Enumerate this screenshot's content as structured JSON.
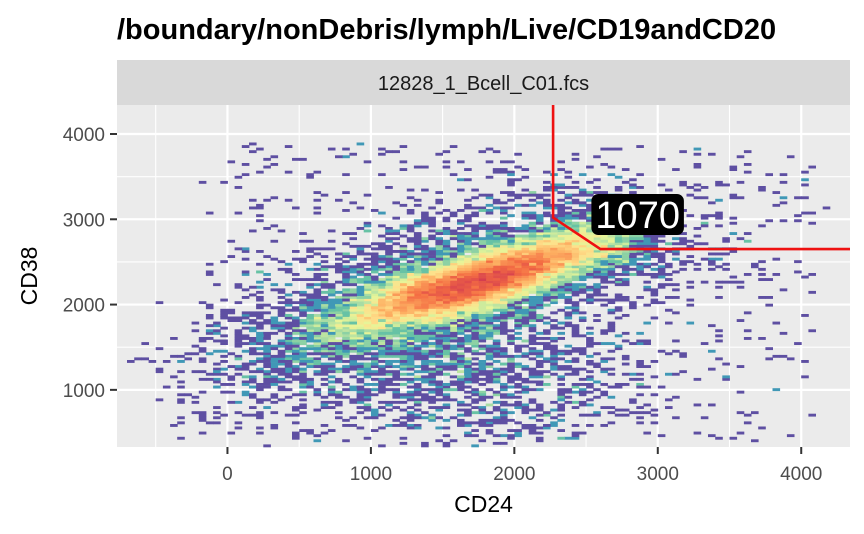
{
  "chart_data": {
    "type": "scatter",
    "subtype": "2d-density (binned flow cytometry dot plot)",
    "title": "/boundary/nonDebris/lymph/Live/CD19andCD20",
    "panel_strip": "12828_1_Bcell_C01.fcs",
    "xlabel": "CD24",
    "ylabel": "CD38",
    "xlim": [
      -770,
      4340
    ],
    "ylim": [
      330,
      4340
    ],
    "x_ticks": [
      0,
      1000,
      2000,
      3000,
      4000
    ],
    "y_ticks": [
      1000,
      2000,
      3000,
      4000
    ],
    "x_tick_labels": [
      "0",
      "1000",
      "2000",
      "3000",
      "4000"
    ],
    "y_tick_labels": [
      "1000",
      "2000",
      "3000",
      "4000"
    ],
    "grid": true,
    "legend": "none",
    "colormap": [
      "#5e4fa2",
      "#3288bd",
      "#66c2a5",
      "#abdda4",
      "#e6f598",
      "#fee08b",
      "#fdae61",
      "#f46d43",
      "#d53e4f"
    ],
    "density_ridge": {
      "x": [
        -200,
        300,
        800,
        1300,
        1600,
        1900,
        2200,
        2500
      ],
      "y": [
        1250,
        1550,
        1850,
        2100,
        2200,
        2330,
        2480,
        2650
      ]
    },
    "gate": {
      "vertices": [
        [
          2270,
          4340
        ],
        [
          2270,
          3020
        ],
        [
          2600,
          2650
        ],
        [
          4340,
          2650
        ]
      ],
      "color": "#ee1111",
      "count_label": "1070",
      "label_position": [
        2860,
        3050
      ]
    }
  }
}
